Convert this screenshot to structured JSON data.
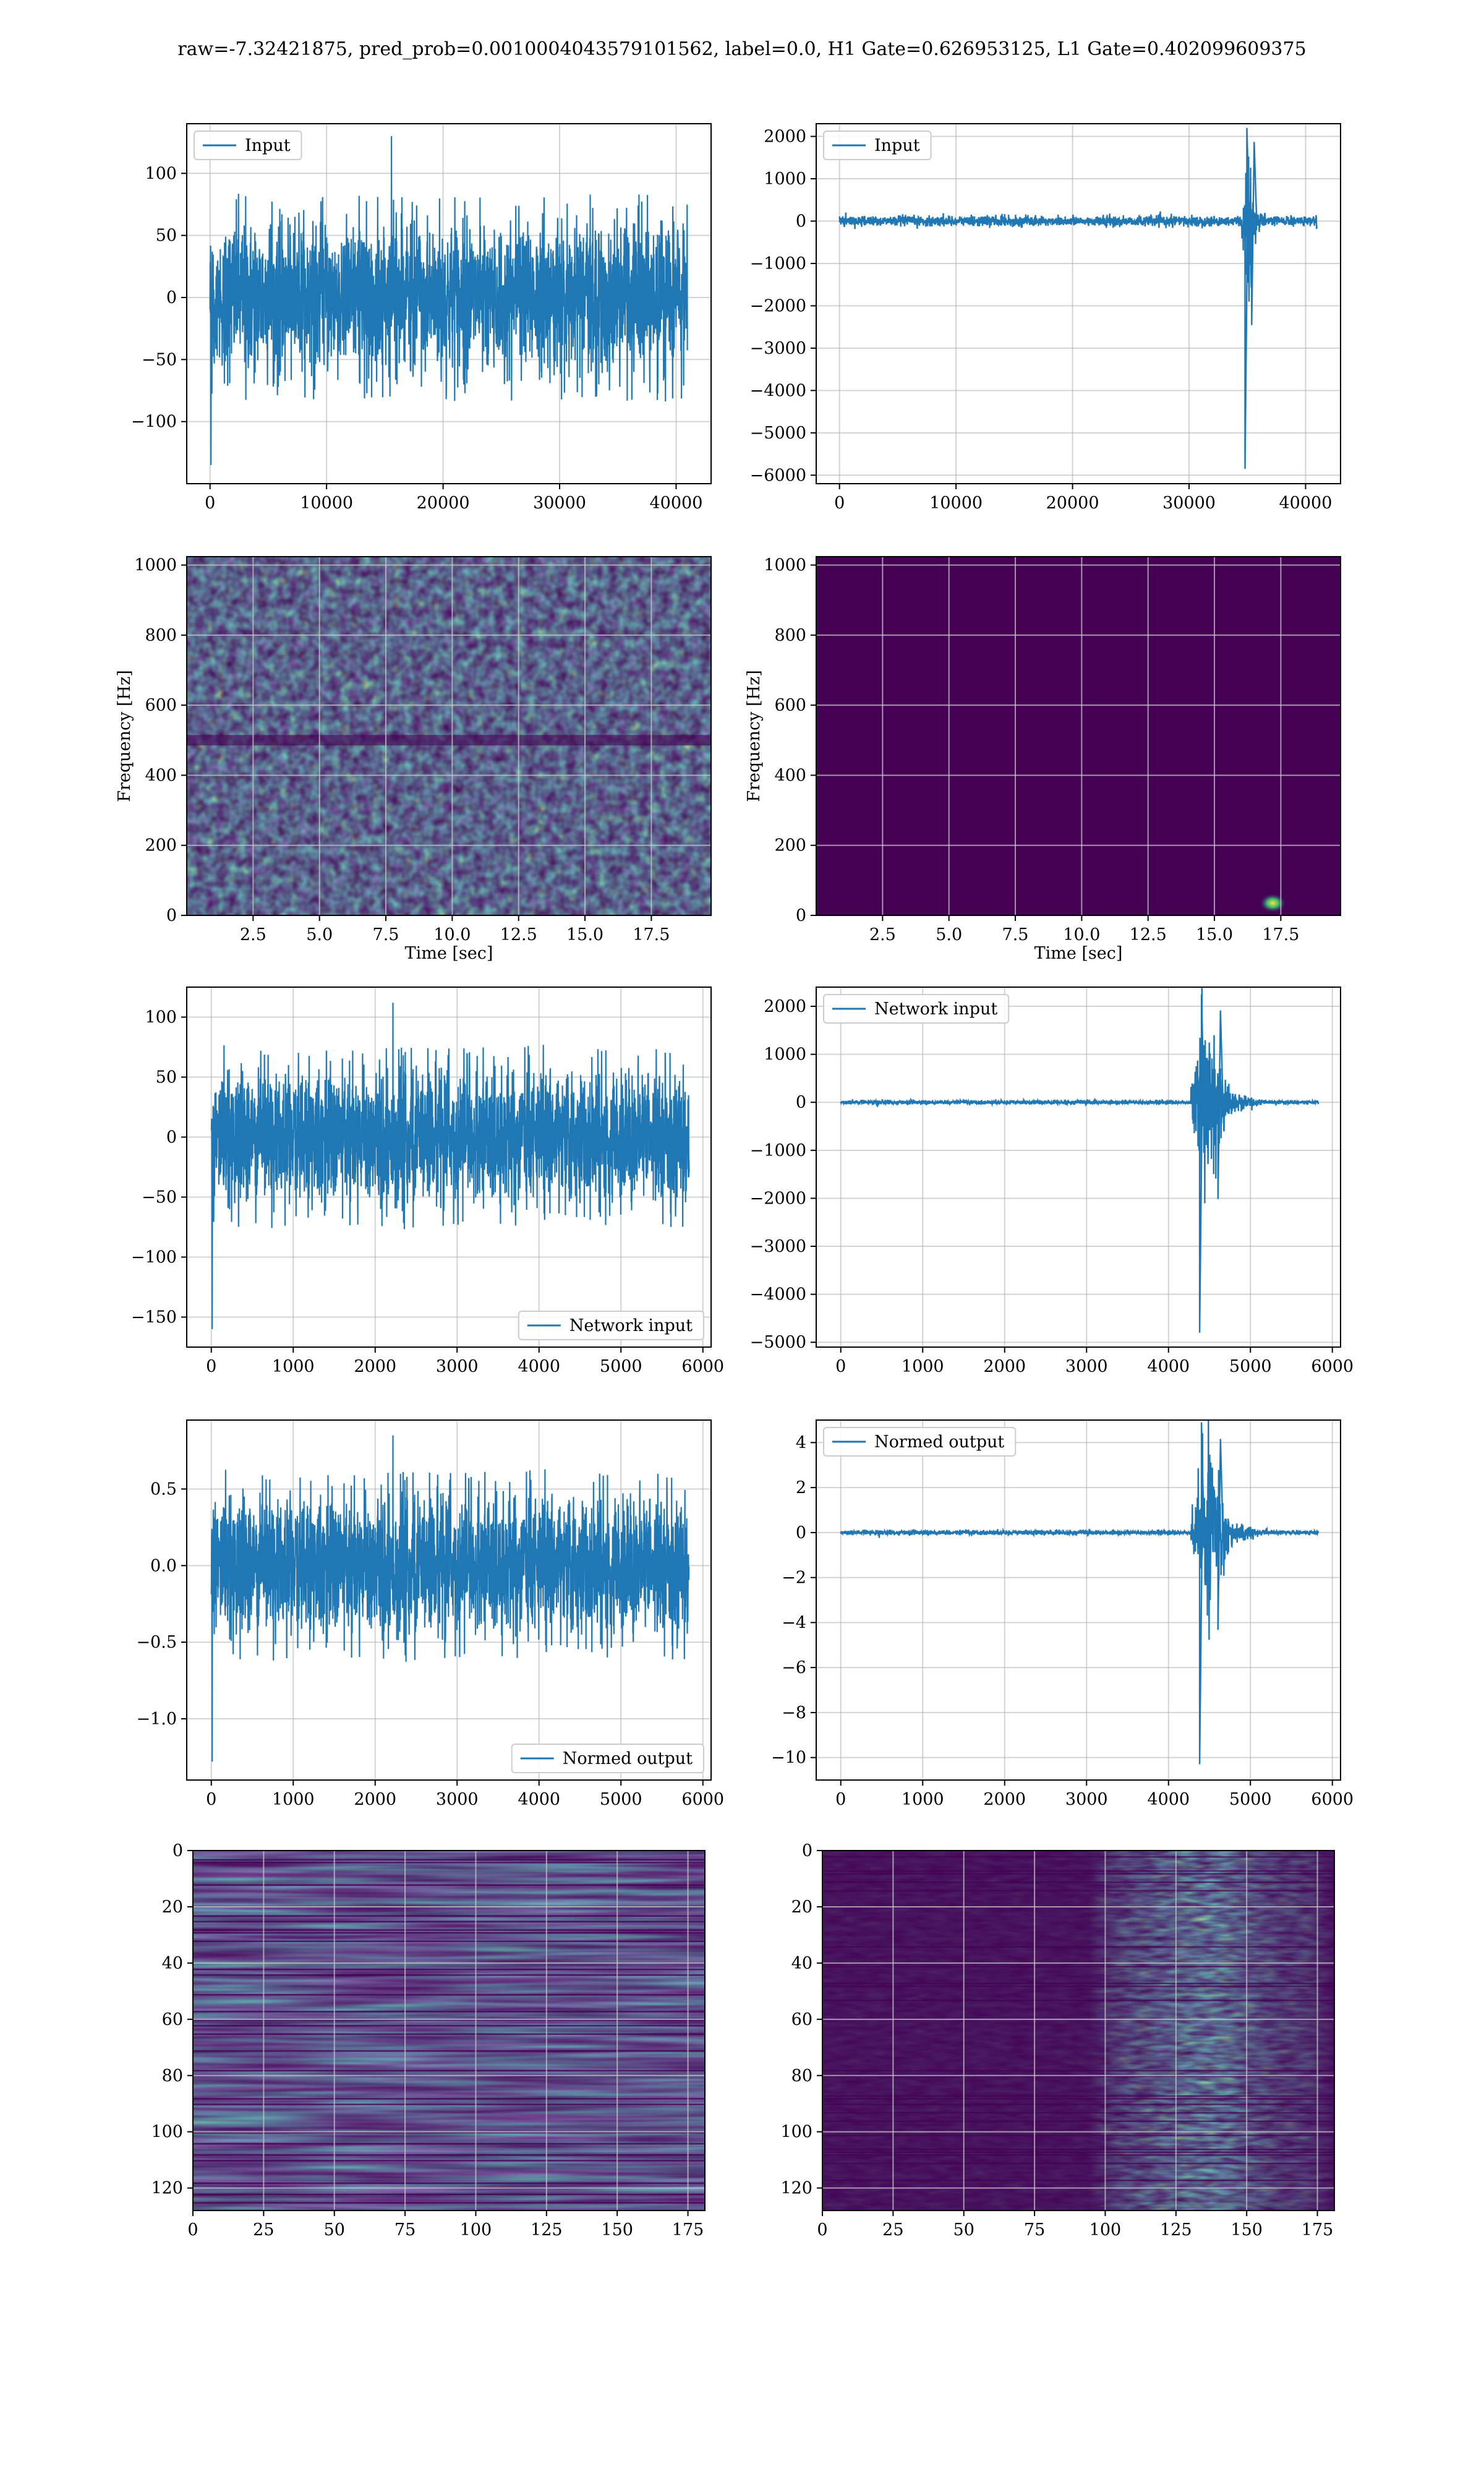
{
  "figure": {
    "title": "raw=-7.32421875, pred_prob=0.0010004043579101562, label=0.0, H1 Gate=0.626953125, L1 Gate=0.402099609375",
    "colors": {
      "line": "#1f77b4",
      "grid": "#b0b0b0",
      "viridis_low": "#440154",
      "viridis_mid": "#21918c",
      "viridis_high": "#fde725"
    }
  },
  "chart_data": [
    {
      "id": "input-h1",
      "type": "line",
      "legend": "Input",
      "legend_loc": "upper-left",
      "xlim": [
        -2000,
        43000
      ],
      "ylim": [
        -150,
        140
      ],
      "xticks": [
        0,
        10000,
        20000,
        30000,
        40000
      ],
      "xtick_labels": [
        "0",
        "10000",
        "20000",
        "30000",
        "40000"
      ],
      "yticks": [
        -100,
        -50,
        0,
        50,
        100
      ],
      "ytick_labels": [
        "−100",
        "−50",
        "0",
        "50",
        "100"
      ],
      "signal": {
        "kind": "noise",
        "x_range": [
          0,
          40960
        ],
        "amplitude": 60,
        "peak": 130,
        "min": -135
      },
      "grid": true
    },
    {
      "id": "input-l1",
      "type": "line",
      "legend": "Input",
      "legend_loc": "upper-left",
      "xlim": [
        -2000,
        43000
      ],
      "ylim": [
        -6200,
        2300
      ],
      "xticks": [
        0,
        10000,
        20000,
        30000,
        40000
      ],
      "xtick_labels": [
        "0",
        "10000",
        "20000",
        "30000",
        "40000"
      ],
      "yticks": [
        -6000,
        -5000,
        -4000,
        -3000,
        -2000,
        -1000,
        0,
        1000,
        2000
      ],
      "ytick_labels": [
        "−6000",
        "−5000",
        "−4000",
        "−3000",
        "−2000",
        "−1000",
        "0",
        "1000",
        "2000"
      ],
      "signal": {
        "kind": "glitch",
        "x_range": [
          0,
          40960
        ],
        "baseline": 60,
        "burst_center": 34800,
        "burst_width": 1800,
        "max": 2200,
        "min": -5850
      },
      "grid": true
    },
    {
      "id": "spec-h1",
      "type": "heatmap",
      "xlabel": "Time [sec]",
      "ylabel": "Frequency [Hz]",
      "xlim": [
        0,
        19.75
      ],
      "ylim": [
        0,
        1024
      ],
      "xticks": [
        2.5,
        5.0,
        7.5,
        10.0,
        12.5,
        15.0,
        17.5
      ],
      "xtick_labels": [
        "2.5",
        "5.0",
        "7.5",
        "10.0",
        "12.5",
        "15.0",
        "17.5"
      ],
      "yticks": [
        0,
        200,
        400,
        600,
        800,
        1000
      ],
      "ytick_labels": [
        "0",
        "200",
        "400",
        "600",
        "800",
        "1000"
      ],
      "pattern": "noise",
      "grid": true
    },
    {
      "id": "spec-l1",
      "type": "heatmap",
      "xlabel": "Time [sec]",
      "ylabel": "Frequency [Hz]",
      "xlim": [
        0,
        19.75
      ],
      "ylim": [
        0,
        1024
      ],
      "xticks": [
        2.5,
        5.0,
        7.5,
        10.0,
        12.5,
        15.0,
        17.5
      ],
      "xtick_labels": [
        "2.5",
        "5.0",
        "7.5",
        "10.0",
        "12.5",
        "15.0",
        "17.5"
      ],
      "yticks": [
        0,
        200,
        400,
        600,
        800,
        1000
      ],
      "ytick_labels": [
        "0",
        "200",
        "400",
        "600",
        "800",
        "1000"
      ],
      "pattern": "blip",
      "blip": {
        "t": 17.2,
        "f": 35
      },
      "grid": true
    },
    {
      "id": "net-h1",
      "type": "line",
      "legend": "Network input",
      "legend_loc": "lower-right",
      "xlim": [
        -300,
        6100
      ],
      "ylim": [
        -175,
        125
      ],
      "xticks": [
        0,
        1000,
        2000,
        3000,
        4000,
        5000,
        6000
      ],
      "xtick_labels": [
        "0",
        "1000",
        "2000",
        "3000",
        "4000",
        "5000",
        "6000"
      ],
      "yticks": [
        -150,
        -100,
        -50,
        0,
        50,
        100
      ],
      "ytick_labels": [
        "−150",
        "−100",
        "−50",
        "0",
        "50",
        "100"
      ],
      "signal": {
        "kind": "noise",
        "x_range": [
          0,
          5832
        ],
        "amplitude": 55,
        "peak": 112,
        "min": -160
      },
      "grid": true
    },
    {
      "id": "net-l1",
      "type": "line",
      "legend": "Network input",
      "legend_loc": "upper-left",
      "xlim": [
        -300,
        6100
      ],
      "ylim": [
        -5100,
        2400
      ],
      "xticks": [
        0,
        1000,
        2000,
        3000,
        4000,
        5000,
        6000
      ],
      "xtick_labels": [
        "0",
        "1000",
        "2000",
        "3000",
        "4000",
        "5000",
        "6000"
      ],
      "yticks": [
        -5000,
        -4000,
        -3000,
        -2000,
        -1000,
        0,
        1000,
        2000
      ],
      "ytick_labels": [
        "−5000",
        "−4000",
        "−3000",
        "−2000",
        "−1000",
        "0",
        "1000",
        "2000"
      ],
      "signal": {
        "kind": "glitch",
        "x_range": [
          0,
          5832
        ],
        "baseline": 20,
        "burst_center": 4380,
        "burst_width": 700,
        "max": 2250,
        "min": -4800
      },
      "grid": true
    },
    {
      "id": "norm-h1",
      "type": "line",
      "legend": "Normed output",
      "legend_loc": "lower-right",
      "xlim": [
        -300,
        6100
      ],
      "ylim": [
        -1.4,
        0.95
      ],
      "xticks": [
        0,
        1000,
        2000,
        3000,
        4000,
        5000,
        6000
      ],
      "xtick_labels": [
        "0",
        "1000",
        "2000",
        "3000",
        "4000",
        "5000",
        "6000"
      ],
      "yticks": [
        -1.0,
        -0.5,
        0.0,
        0.5
      ],
      "ytick_labels": [
        "−1.0",
        "−0.5",
        "0.0",
        "0.5"
      ],
      "signal": {
        "kind": "noise",
        "x_range": [
          0,
          5832
        ],
        "amplitude": 0.45,
        "peak": 0.85,
        "min": -1.28
      },
      "grid": true
    },
    {
      "id": "norm-l1",
      "type": "line",
      "legend": "Normed output",
      "legend_loc": "upper-left",
      "xlim": [
        -300,
        6100
      ],
      "ylim": [
        -11,
        5
      ],
      "xticks": [
        0,
        1000,
        2000,
        3000,
        4000,
        5000,
        6000
      ],
      "xtick_labels": [
        "0",
        "1000",
        "2000",
        "3000",
        "4000",
        "5000",
        "6000"
      ],
      "yticks": [
        -10,
        -8,
        -6,
        -4,
        -2,
        0,
        2,
        4
      ],
      "ytick_labels": [
        "−10",
        "−8",
        "−6",
        "−4",
        "−2",
        "0",
        "2",
        "4"
      ],
      "signal": {
        "kind": "glitch",
        "x_range": [
          0,
          5832
        ],
        "baseline": 0.05,
        "burst_center": 4380,
        "burst_width": 700,
        "max": 4.9,
        "min": -10.3
      },
      "grid": true
    },
    {
      "id": "feat-h1",
      "type": "heatmap",
      "xlim": [
        0,
        181
      ],
      "ylim": [
        128,
        0
      ],
      "xticks": [
        0,
        25,
        50,
        75,
        100,
        125,
        150,
        175
      ],
      "xtick_labels": [
        "0",
        "25",
        "50",
        "75",
        "100",
        "125",
        "150",
        "175"
      ],
      "yticks": [
        0,
        20,
        40,
        60,
        80,
        100,
        120
      ],
      "ytick_labels": [
        "0",
        "20",
        "40",
        "60",
        "80",
        "100",
        "120"
      ],
      "pattern": "rows",
      "grid": true
    },
    {
      "id": "feat-l1",
      "type": "heatmap",
      "xlim": [
        0,
        181
      ],
      "ylim": [
        128,
        0
      ],
      "xticks": [
        0,
        25,
        50,
        75,
        100,
        125,
        150,
        175
      ],
      "xtick_labels": [
        "0",
        "25",
        "50",
        "75",
        "100",
        "125",
        "150",
        "175"
      ],
      "yticks": [
        0,
        20,
        40,
        60,
        80,
        100,
        120
      ],
      "ytick_labels": [
        "0",
        "20",
        "40",
        "60",
        "80",
        "100",
        "120"
      ],
      "pattern": "burst",
      "burst": {
        "start": 95,
        "peak": 135,
        "end": 165
      },
      "grid": true
    }
  ]
}
